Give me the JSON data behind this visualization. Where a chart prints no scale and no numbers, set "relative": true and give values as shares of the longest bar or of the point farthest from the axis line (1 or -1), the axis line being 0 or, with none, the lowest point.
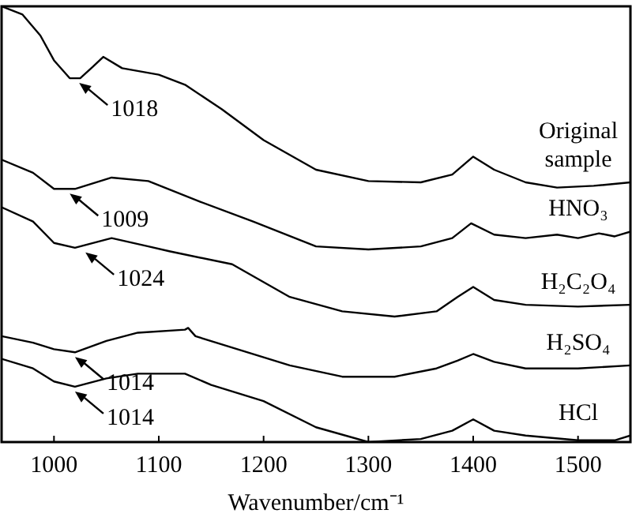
{
  "chart_data": {
    "type": "line",
    "relative": true,
    "xlabel": "Wavenumber/cm⁻¹",
    "xlim": [
      950,
      1550
    ],
    "xticks": [
      1000,
      1100,
      1200,
      1300,
      1400,
      1500
    ],
    "tick_labels": "x",
    "grid": false,
    "legend": false,
    "marker": "none",
    "line_style": "solid",
    "series": [
      {
        "name": "Original sample",
        "color": "#000000",
        "x": [
          950,
          970,
          987,
          1000,
          1015,
          1025,
          1037,
          1047,
          1065,
          1100,
          1125,
          1160,
          1200,
          1250,
          1300,
          1350,
          1380,
          1400,
          1420,
          1450,
          1480,
          1515,
          1550
        ],
        "values": [
          1,
          0.981,
          0.933,
          0.876,
          0.835,
          0.835,
          0.861,
          0.884,
          0.858,
          0.843,
          0.82,
          0.764,
          0.693,
          0.625,
          0.599,
          0.596,
          0.614,
          0.655,
          0.625,
          0.596,
          0.584,
          0.588,
          0.596
        ]
      },
      {
        "name": "HNO₃",
        "color": "#000000",
        "x": [
          950,
          980,
          1000,
          1020,
          1055,
          1090,
          1140,
          1190,
          1250,
          1300,
          1350,
          1380,
          1398,
          1420,
          1450,
          1480,
          1500,
          1520,
          1535,
          1550
        ],
        "values": [
          0.648,
          0.618,
          0.581,
          0.581,
          0.607,
          0.599,
          0.551,
          0.506,
          0.449,
          0.442,
          0.449,
          0.468,
          0.502,
          0.476,
          0.468,
          0.476,
          0.468,
          0.479,
          0.472,
          0.483
        ]
      },
      {
        "name": "H₂C₂O₄",
        "color": "#000000",
        "x": [
          950,
          980,
          1000,
          1020,
          1055,
          1090,
          1110,
          1170,
          1225,
          1275,
          1325,
          1365,
          1385,
          1400,
          1420,
          1450,
          1500,
          1550
        ],
        "values": [
          0.539,
          0.506,
          0.457,
          0.446,
          0.468,
          0.449,
          0.438,
          0.408,
          0.333,
          0.3,
          0.288,
          0.3,
          0.333,
          0.356,
          0.326,
          0.315,
          0.311,
          0.315
        ]
      },
      {
        "name": "H₂SO₄",
        "color": "#000000",
        "x": [
          950,
          980,
          1000,
          1020,
          1050,
          1080,
          1125,
          1128,
          1135,
          1175,
          1225,
          1275,
          1325,
          1365,
          1385,
          1400,
          1420,
          1450,
          1500,
          1550
        ],
        "values": [
          0.243,
          0.228,
          0.213,
          0.206,
          0.232,
          0.251,
          0.258,
          0.262,
          0.243,
          0.213,
          0.176,
          0.15,
          0.15,
          0.169,
          0.187,
          0.202,
          0.184,
          0.169,
          0.169,
          0.176
        ]
      },
      {
        "name": "HCl",
        "color": "#000000",
        "x": [
          950,
          980,
          1000,
          1020,
          1050,
          1080,
          1125,
          1150,
          1200,
          1250,
          1300,
          1350,
          1380,
          1400,
          1420,
          1450,
          1500,
          1535,
          1550
        ],
        "values": [
          0.191,
          0.169,
          0.139,
          0.127,
          0.146,
          0.157,
          0.157,
          0.131,
          0.094,
          0.034,
          0,
          0.007,
          0.026,
          0.052,
          0.026,
          0.015,
          0.004,
          0.004,
          0.015
        ]
      }
    ],
    "annotations": [
      {
        "text": "1018",
        "x": 1018,
        "y": 0.835
      },
      {
        "text": "1009",
        "x": 1009,
        "y": 0.581
      },
      {
        "text": "1024",
        "x": 1024,
        "y": 0.446
      },
      {
        "text": "1014",
        "x": 1014,
        "y": 0.206
      },
      {
        "text": "1014",
        "x": 1014,
        "y": 0.127
      }
    ]
  }
}
